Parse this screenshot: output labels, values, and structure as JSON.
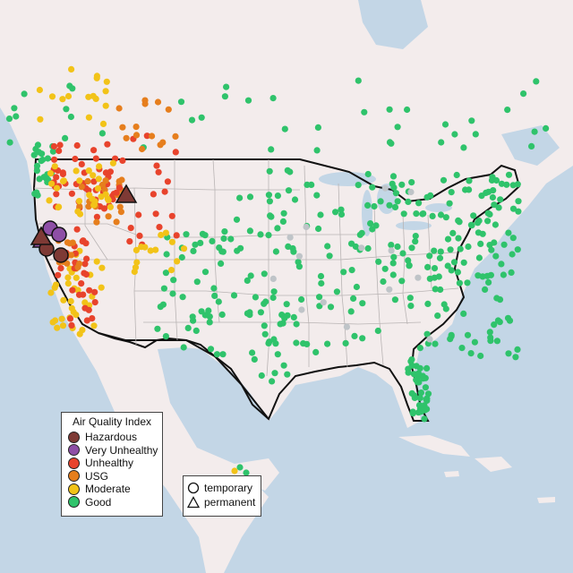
{
  "legend": {
    "title": "Air Quality Index",
    "categories": [
      {
        "label": "Hazardous",
        "color": "#7e3a35"
      },
      {
        "label": "Very Unhealthy",
        "color": "#8e4fa6"
      },
      {
        "label": "Unhealthy",
        "color": "#e8432c"
      },
      {
        "label": "USG",
        "color": "#e67e1d"
      },
      {
        "label": "Moderate",
        "color": "#f2c318"
      },
      {
        "label": "Good",
        "color": "#2fc36b"
      }
    ],
    "monitor_types": [
      {
        "label": "temporary",
        "shape": "circle-icon"
      },
      {
        "label": "permanent",
        "shape": "triangle-icon"
      }
    ]
  },
  "colors": {
    "water": "#c3d6e6",
    "land": "#f3ecec",
    "inactive": "#bfc4c8",
    "border": "#111111"
  }
}
